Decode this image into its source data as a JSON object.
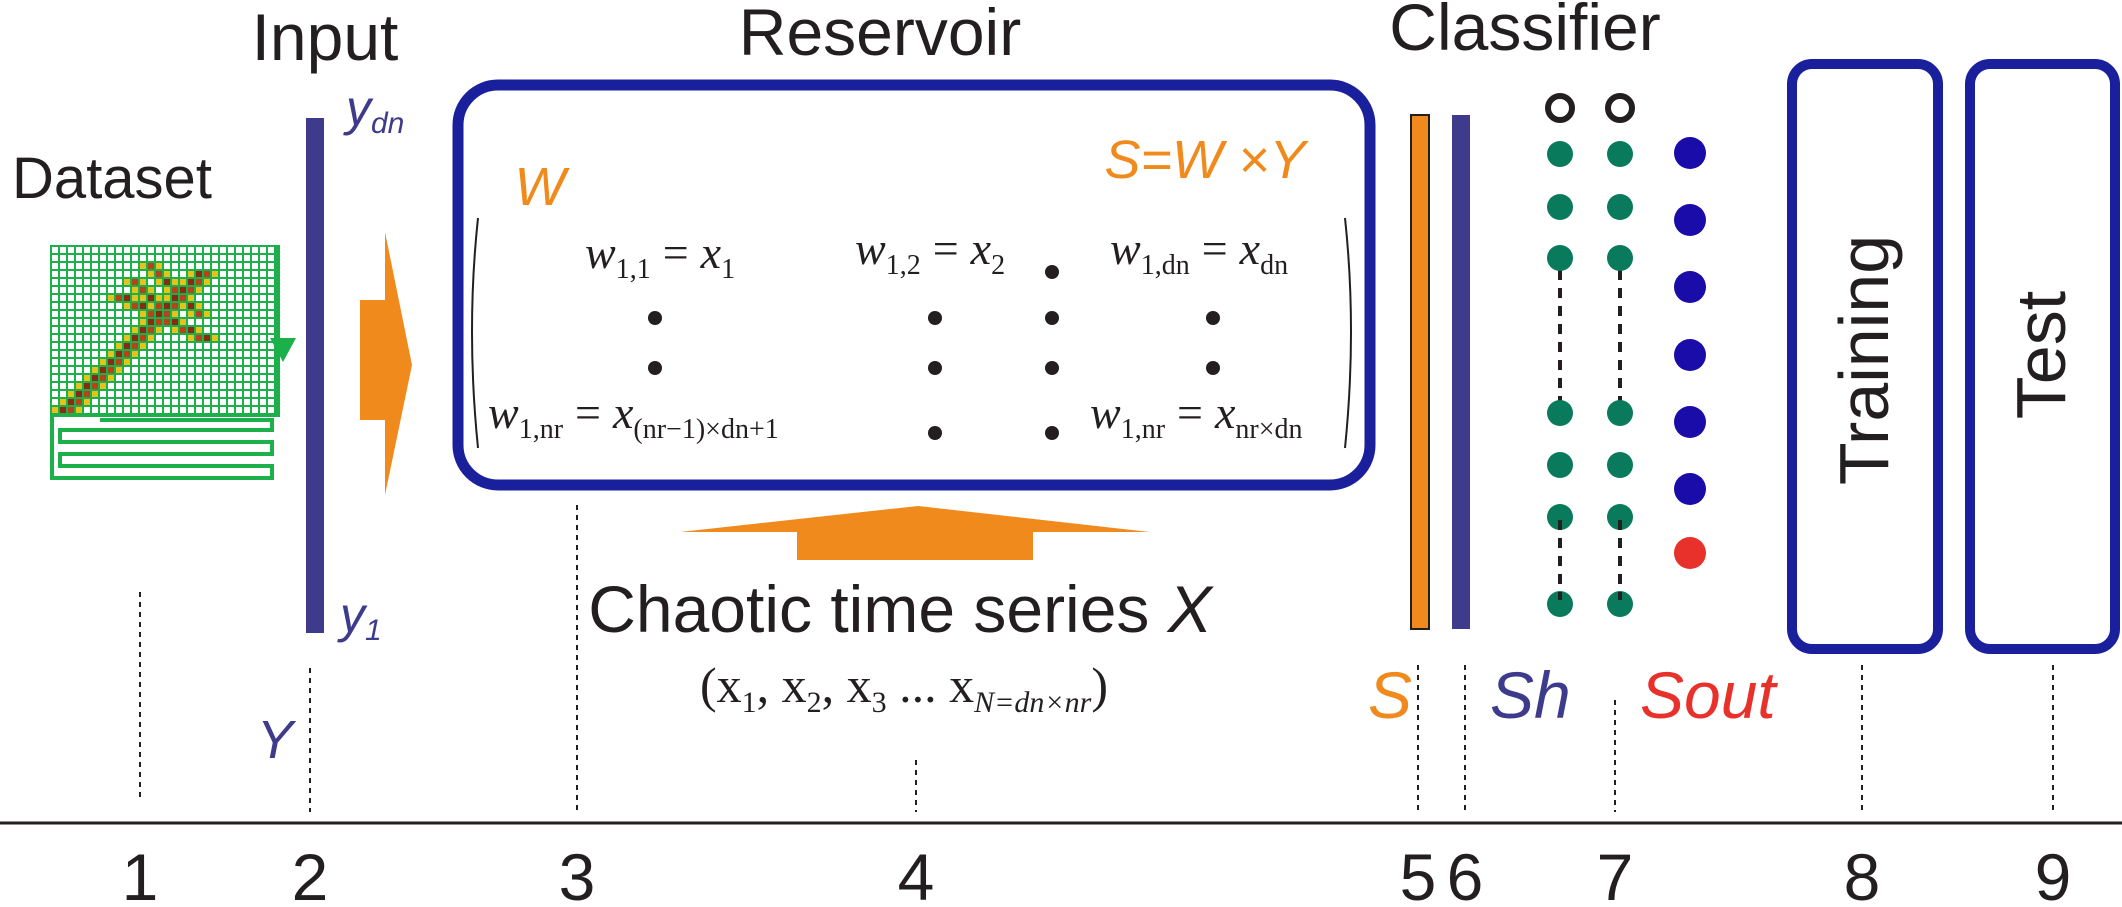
{
  "colors": {
    "navy": "#1a1f9c",
    "purple": "#3e3a8c",
    "orange": "#f08a1c",
    "green": "#0a7a5c",
    "blue": "#1a0ca8",
    "red": "#e8312a",
    "gridGreen": "#1bb04a",
    "text": "#231f20"
  },
  "headers": {
    "input": "Input",
    "reservoir": "Reservoir",
    "classifier": "Classifier",
    "dataset": "Dataset"
  },
  "input_labels": {
    "top": "y",
    "top_sub": "dn",
    "bottom": "y",
    "bottom_sub": "1",
    "vector": "Y"
  },
  "reservoir": {
    "weight_label": "W",
    "equation": "S=W ×Y",
    "matrix": {
      "w11_lhs": "w",
      "w11_lhs_sub": "1,1",
      "w11_rhs": "x",
      "w11_rhs_sub": "1",
      "w12_lhs": "w",
      "w12_lhs_sub": "1,2",
      "w12_rhs": "x",
      "w12_rhs_sub": "2",
      "w1dn_lhs": "w",
      "w1dn_lhs_sub": "1,dn",
      "w1dn_rhs": "x",
      "w1dn_rhs_sub": "dn",
      "w1nr_lhs": "w",
      "w1nr_lhs_sub": "1,nr",
      "w1nr_rhs": "x",
      "w1nr_rhs_sub": "(nr−1)×dn+1",
      "w1nr2_lhs": "w",
      "w1nr2_lhs_sub": "1,nr",
      "w1nr2_rhs": "x",
      "w1nr2_rhs_sub": "nr×dn",
      "equals": "="
    }
  },
  "chaotic": {
    "title": "Chaotic time series ",
    "title_var": "X",
    "series_open": "(x",
    "series_sub1": "1",
    "series_mid1": ", x",
    "series_sub2": "2",
    "series_mid2": ", x",
    "series_sub3": "3",
    "series_mid3": " ... x",
    "series_subN": "N=dn×nr",
    "series_close": ")"
  },
  "classifier_labels": {
    "s": "S",
    "sh": "Sh",
    "sout": "Sout"
  },
  "boxes": {
    "training": "Training",
    "test": "Test"
  },
  "steps": [
    "1",
    "2",
    "3",
    "4",
    "5",
    "6",
    "7",
    "8",
    "9"
  ]
}
